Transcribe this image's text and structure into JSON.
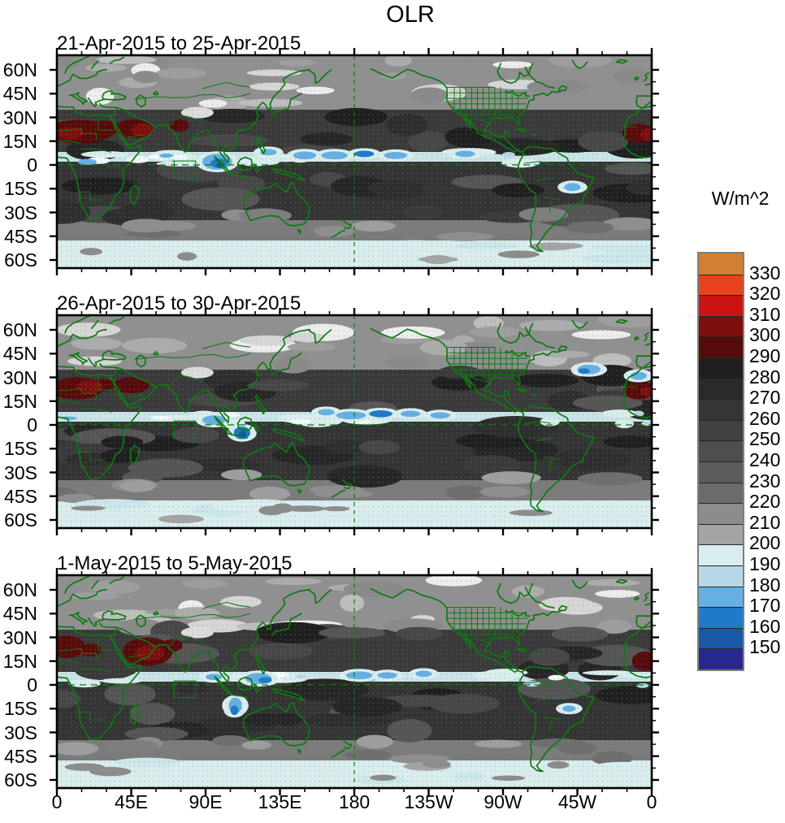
{
  "figure": {
    "title": "OLR"
  },
  "panels": [
    {
      "title": "21-Apr-2015 to 25-Apr-2015"
    },
    {
      "title": "26-Apr-2015 to 30-Apr-2015"
    },
    {
      "title": "1-May-2015 to 5-May-2015"
    }
  ],
  "axes": {
    "lat_labels": [
      "60N",
      "45N",
      "30N",
      "15N",
      "0",
      "15S",
      "30S",
      "45S",
      "60S"
    ],
    "lon_labels": [
      "0",
      "45E",
      "90E",
      "135E",
      "180",
      "135W",
      "90W",
      "45W",
      "0"
    ]
  },
  "colorbar": {
    "units": "W/m^2",
    "tick_labels": [
      "330",
      "320",
      "310",
      "300",
      "290",
      "280",
      "270",
      "260",
      "250",
      "240",
      "230",
      "220",
      "210",
      "200",
      "190",
      "180",
      "170",
      "160",
      "150"
    ],
    "colors_top_to_bottom": [
      "#D08030",
      "#E8431F",
      "#CC1414",
      "#7E0F0F",
      "#560B0B",
      "#1F1F1F",
      "#2A2A2A",
      "#353535",
      "#414141",
      "#4E4E4E",
      "#5C5C5C",
      "#6B6B6B",
      "#8C8C8C",
      "#A4A4A4",
      "#D9EDEE",
      "#B6D7E6",
      "#66AFE3",
      "#1E7BC8",
      "#1958A4",
      "#28288C"
    ]
  },
  "map_style": {
    "outline_color": "#0E7A12",
    "reference_lines": [
      "dashed equator line",
      "dashed 180 meridian line",
      "solid index box near 70E-85E, 0-10S"
    ]
  },
  "chart_data": {
    "type": "heatmap",
    "subtype": "filled-contour world maps, equirectangular, lon 0E-360E, lat 60N-60S shown in 3 stacked panels",
    "title": "OLR",
    "units": "W/m^2",
    "panel_periods": [
      "21-Apr-2015 to 25-Apr-2015",
      "26-Apr-2015 to 30-Apr-2015",
      "1-May-2015 to 5-May-2015"
    ],
    "contour_levels": [
      150,
      160,
      170,
      180,
      190,
      200,
      210,
      220,
      230,
      240,
      250,
      260,
      270,
      280,
      290,
      300,
      310,
      320,
      330
    ],
    "level_colors_low_to_high": [
      "#28288C",
      "#1958A4",
      "#1E7BC8",
      "#66AFE3",
      "#B6D7E6",
      "#D9EDEE",
      "#A4A4A4",
      "#8C8C8C",
      "#6B6B6B",
      "#5C5C5C",
      "#4E4E4E",
      "#414141",
      "#353535",
      "#2A2A2A",
      "#1F1F1F",
      "#560B0B",
      "#7E0F0F",
      "#CC1414",
      "#E8431F",
      "#D08030"
    ],
    "lat_ticks": [
      "60N",
      "45N",
      "30N",
      "15N",
      "0",
      "15S",
      "30S",
      "45S",
      "60S"
    ],
    "lon_ticks": [
      "0",
      "45E",
      "90E",
      "135E",
      "180",
      "135W",
      "90W",
      "45W",
      "0"
    ],
    "legend_position": "right",
    "overlays": [
      "green coastlines and country borders",
      "green US state borders",
      "green dashed equator and 180-meridian lines",
      "green index box in Indian Ocean"
    ],
    "notable_features": "High OLR (dark red, >290 W/m^2) over Sahara/Arabia/NW India; low OLR (blues, <200) along ITCZ, Maritime Continent and Southern Ocean band"
  }
}
